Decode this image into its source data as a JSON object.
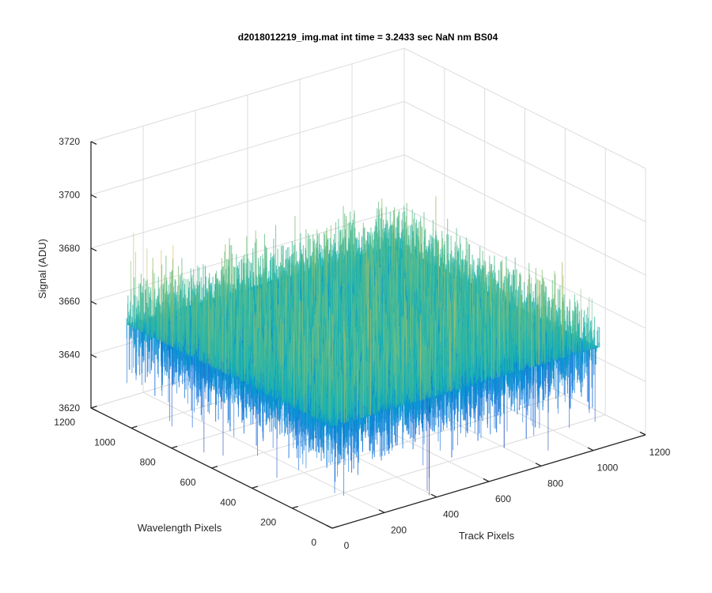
{
  "chart_data": {
    "type": "surface",
    "title": "d2018012219_img.mat int time = 3.2433 sec  NaN nm BS04",
    "xlabel": "Track Pixels",
    "ylabel": "Wavelength Pixels",
    "zlabel": "Signal (ADU)",
    "xlim": [
      0,
      1200
    ],
    "ylim": [
      0,
      1200
    ],
    "zlim": [
      3620,
      3720
    ],
    "x_ticks": [
      0,
      200,
      400,
      600,
      800,
      1000,
      1200
    ],
    "y_ticks": [
      0,
      200,
      400,
      600,
      800,
      1000,
      1200
    ],
    "z_ticks": [
      3620,
      3640,
      3660,
      3680,
      3700,
      3720
    ],
    "x_tick_labels": [
      "0",
      "200",
      "400",
      "600",
      "800",
      "1000",
      "1200"
    ],
    "y_tick_labels": [
      "0",
      "200",
      "400",
      "600",
      "800",
      "1000",
      "1200"
    ],
    "z_tick_labels": [
      "3620",
      "3640",
      "3660",
      "3680",
      "3700",
      "3720"
    ],
    "data_extent": {
      "x": [
        1,
        1024
      ],
      "y": [
        1,
        1024
      ]
    },
    "signal_mean": 3658,
    "signal_noise_std": 9,
    "grid": true,
    "colormap": "parula",
    "colors": {
      "low": "#0072BD",
      "mid": "#23B7A6",
      "high": "#D9C93A"
    }
  }
}
